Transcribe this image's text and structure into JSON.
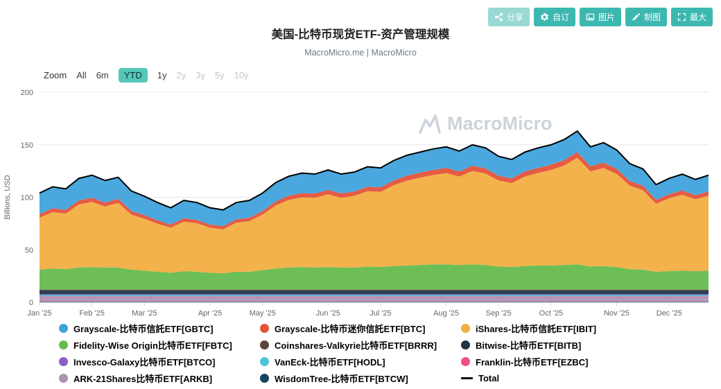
{
  "toolbar": {
    "buttons": [
      {
        "label": "分享",
        "icon": "share-icon"
      },
      {
        "label": "自订",
        "icon": "gear-icon"
      },
      {
        "label": "图片",
        "icon": "image-icon"
      },
      {
        "label": "制图",
        "icon": "pencil-icon"
      },
      {
        "label": "最大",
        "icon": "expand-icon"
      }
    ]
  },
  "controls": {
    "zoom_label": "Zoom",
    "ranges": [
      {
        "label": "All",
        "state": "normal"
      },
      {
        "label": "6m",
        "state": "normal"
      },
      {
        "label": "YTD",
        "state": "selected"
      },
      {
        "label": "1y",
        "state": "normal"
      },
      {
        "label": "2y",
        "state": "disabled"
      },
      {
        "label": "3y",
        "state": "disabled"
      },
      {
        "label": "5y",
        "state": "disabled"
      },
      {
        "label": "10y",
        "state": "disabled"
      }
    ]
  },
  "watermark": {
    "text": "MacroMicro"
  },
  "chart_data": {
    "type": "area",
    "stacked": true,
    "title": "美国-比特币现货ETF-资产管理规模",
    "subtitle": "MacroMicro.me | MacroMicro",
    "ylabel": "Billions, USD",
    "ylim": [
      0,
      200
    ],
    "yticks": [
      0,
      50,
      100,
      150,
      200
    ],
    "grid": "horizontal",
    "legend_position": "bottom",
    "n_points": 52,
    "x_tick_labels": [
      "Jan '25",
      "Feb '25",
      "Mar '25",
      "Apr '25",
      "May '25",
      "Jun '25",
      "Jul '25",
      "Aug '25",
      "Sep '25",
      "Oct '25",
      "Nov '25",
      "Dec '25"
    ],
    "x_tick_positions": [
      0,
      4,
      8,
      13,
      17,
      22,
      26,
      31,
      35,
      39,
      44,
      48
    ],
    "stack_order": "bottom-to-top",
    "series": [
      {
        "key": "btcw",
        "name": "WisdomTree-比特币ETF[BTCW]",
        "color": "#17455f",
        "constant": 0.3
      },
      {
        "key": "arkb",
        "name": "ARK-21Shares比特币ETF[ARKB]",
        "color": "#b291b5",
        "constant": 4.6
      },
      {
        "key": "ezbc",
        "name": "Franklin-比特币ETF[EZBC]",
        "color": "#f04f86",
        "constant": 0.6
      },
      {
        "key": "hodl",
        "name": "VanEck-比特币ETF[HODL]",
        "color": "#4fc4d4",
        "constant": 1.4
      },
      {
        "key": "btco",
        "name": "Invesco-Galaxy比特币ETF[BTCO]",
        "color": "#8b5fc7",
        "constant": 0.8
      },
      {
        "key": "bitb",
        "name": "Bitwise-比特币ETF[BITB]",
        "color": "#233348",
        "constant": 3.6
      },
      {
        "key": "brrr",
        "name": "Coinshares-Valkyrie比特币ETF[BRRR]",
        "color": "#5a453d",
        "constant": 0.8
      },
      {
        "key": "fbtc",
        "name": "Fidelity-Wise Origin比特币ETF[FBTC]",
        "color": "#66bb4e",
        "values": [
          19,
          20,
          19.5,
          21,
          21.5,
          21,
          21,
          19,
          18,
          17,
          16,
          17.5,
          17,
          16,
          15.5,
          17,
          17,
          18.5,
          20,
          21,
          21.5,
          21,
          21.5,
          21,
          21,
          22,
          21.5,
          22.5,
          23,
          23.5,
          24,
          24,
          23.5,
          24,
          23.5,
          22,
          21.5,
          22.5,
          23,
          23,
          23.5,
          24,
          22,
          22.5,
          21.5,
          19.5,
          19,
          17,
          17.5,
          18,
          17.5,
          18
        ]
      },
      {
        "key": "ibit",
        "name": "iShares-比特币信託ETF[IBIT]",
        "color": "#f2ae41",
        "values": [
          49.4,
          53.8,
          52.9,
          60.1,
          62,
          58.1,
          61.6,
          52.4,
          49.5,
          45.7,
          42.9,
          47.2,
          46.2,
          42.9,
          41.9,
          46.7,
          48.2,
          52.9,
          60.1,
          64.4,
          66.3,
          66.4,
          69.2,
          66.4,
          68.3,
          71.6,
          71.6,
          76.9,
          80.7,
          83.1,
          85,
          86.9,
          84.1,
          88.9,
          87,
          81.8,
          79.9,
          85.1,
          88,
          90.9,
          94.7,
          101.5,
          90.5,
          93.3,
          88.6,
          79.5,
          75.7,
          64.7,
          69.5,
          72.3,
          68.5,
          71.4
        ]
      },
      {
        "key": "btc",
        "name": "Grayscale-比特币迷你信託ETF[BTC]",
        "color": "#e4533a",
        "values": [
          3.5,
          3.6,
          3.5,
          3.8,
          3.9,
          3.8,
          3.8,
          3.5,
          3.4,
          3.2,
          3,
          3.2,
          3.2,
          3,
          3,
          3.2,
          3.2,
          3.5,
          3.8,
          4,
          4.1,
          4.1,
          4.2,
          4.1,
          4.1,
          4.3,
          4.3,
          4.5,
          4.7,
          4.8,
          4.9,
          5,
          4.8,
          5,
          4.9,
          4.6,
          4.5,
          4.8,
          4.9,
          5,
          5.2,
          5.4,
          4.9,
          5.1,
          4.8,
          4.4,
          4.2,
          3.7,
          3.9,
          4.1,
          3.9,
          4
        ]
      },
      {
        "key": "gbtc",
        "name": "Grayscale-比特币信託ETF[GBTC]",
        "color": "#41a3dc",
        "values": [
          20,
          20.5,
          20,
          21,
          21.5,
          21,
          20.5,
          19,
          18,
          17,
          16,
          17,
          16.5,
          16,
          15.5,
          16,
          16.5,
          17,
          18,
          18.5,
          19,
          18.5,
          19,
          18.5,
          18.5,
          19,
          18.5,
          19,
          19.5,
          19.5,
          20,
          20,
          19.5,
          20,
          19.5,
          18.5,
          18,
          18.5,
          19,
          19,
          19.5,
          20,
          18.5,
          19,
          18,
          16.5,
          16,
          14.5,
          15,
          15.5,
          15,
          15.5
        ]
      }
    ],
    "total_line": {
      "name": "Total",
      "color": "#000000"
    }
  },
  "legend": {
    "items": [
      {
        "key": "gbtc",
        "label": "Grayscale-比特币信託ETF[GBTC]",
        "color": "#41a3dc",
        "marker": "dot"
      },
      {
        "key": "btc",
        "label": "Grayscale-比特币迷你信託ETF[BTC]",
        "color": "#e4533a",
        "marker": "dot"
      },
      {
        "key": "ibit",
        "label": "iShares-比特币信託ETF[IBIT]",
        "color": "#f2ae41",
        "marker": "dot"
      },
      {
        "key": "fbtc",
        "label": "Fidelity-Wise Origin比特币ETF[FBTC]",
        "color": "#66bb4e",
        "marker": "dot"
      },
      {
        "key": "brrr",
        "label": "Coinshares-Valkyrie比特币ETF[BRRR]",
        "color": "#5a453d",
        "marker": "dot"
      },
      {
        "key": "bitb",
        "label": "Bitwise-比特币ETF[BITB]",
        "color": "#233348",
        "marker": "dot"
      },
      {
        "key": "btco",
        "label": "Invesco-Galaxy比特币ETF[BTCO]",
        "color": "#8b5fc7",
        "marker": "dot"
      },
      {
        "key": "hodl",
        "label": "VanEck-比特币ETF[HODL]",
        "color": "#4fc4d4",
        "marker": "dot"
      },
      {
        "key": "ezbc",
        "label": "Franklin-比特币ETF[EZBC]",
        "color": "#f04f86",
        "marker": "dot"
      },
      {
        "key": "arkb",
        "label": "ARK-21Shares比特币ETF[ARKB]",
        "color": "#b291b5",
        "marker": "dot"
      },
      {
        "key": "btcw",
        "label": "WisdomTree-比特币ETF[BTCW]",
        "color": "#17455f",
        "marker": "dot"
      },
      {
        "key": "total",
        "label": "Total",
        "color": "#000000",
        "marker": "line"
      }
    ]
  }
}
